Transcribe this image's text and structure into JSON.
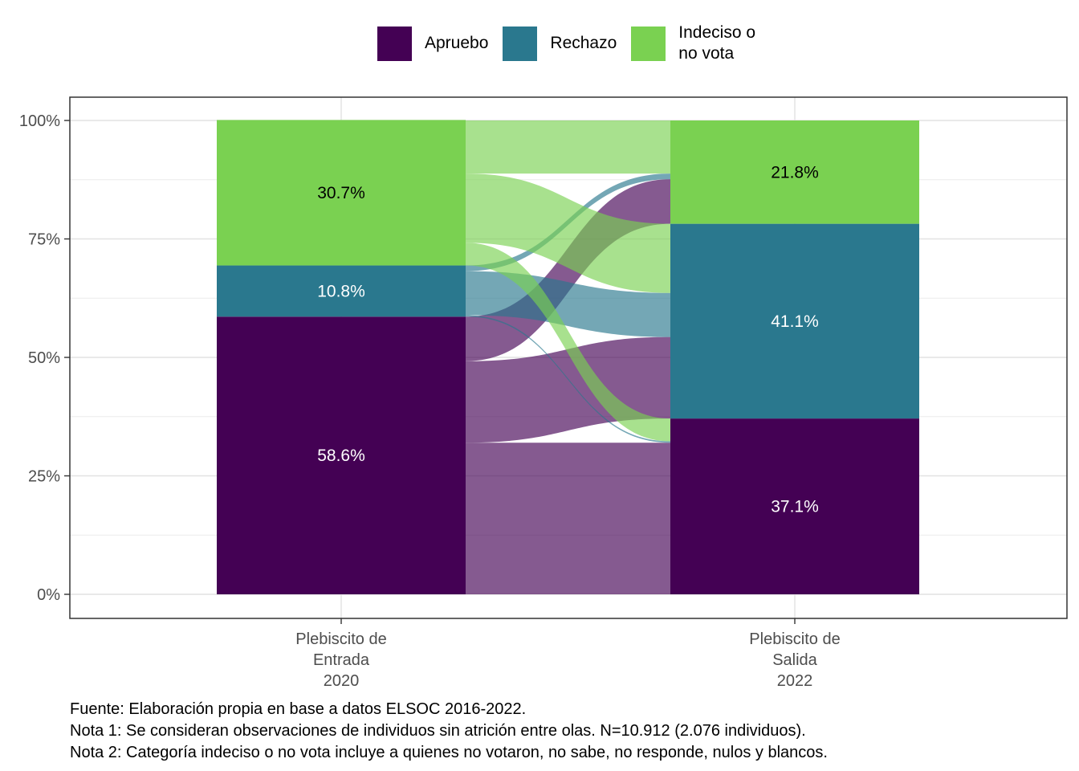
{
  "chart_data": {
    "type": "alluvial",
    "legend": {
      "placement": "top",
      "entries": [
        {
          "name": "Apruebo",
          "color": "#440154",
          "label_lines": [
            "Apruebo"
          ]
        },
        {
          "name": "Rechazo",
          "color": "#2A788E",
          "label_lines": [
            "Rechazo"
          ]
        },
        {
          "name": "Indeciso o no vota",
          "color": "#7AD151",
          "label_lines": [
            "Indeciso o",
            "no vota"
          ]
        }
      ]
    },
    "y_axis": {
      "range": [
        0,
        100
      ],
      "ticks": [
        0,
        25,
        50,
        75,
        100
      ],
      "tick_labels": [
        "0%",
        "25%",
        "50%",
        "75%",
        "100%"
      ]
    },
    "grid": true,
    "columns": [
      {
        "label_lines": [
          "Plebiscito de",
          "Entrada",
          "2020"
        ],
        "segments": [
          {
            "category": "Apruebo",
            "value": 58.6,
            "label": "58.6%"
          },
          {
            "category": "Rechazo",
            "value": 10.8,
            "label": "10.8%"
          },
          {
            "category": "Indeciso o no vota",
            "value": 30.7,
            "label": "30.7%"
          }
        ]
      },
      {
        "label_lines": [
          "Plebiscito de",
          "Salida",
          "2022"
        ],
        "segments": [
          {
            "category": "Apruebo",
            "value": 37.1,
            "label": "37.1%"
          },
          {
            "category": "Rechazo",
            "value": 41.1,
            "label": "41.1%"
          },
          {
            "category": "Indeciso o no vota",
            "value": 21.8,
            "label": "21.8%"
          }
        ]
      }
    ],
    "flows": [
      {
        "from": "Apruebo",
        "to": "Apruebo",
        "value": 32.0
      },
      {
        "from": "Apruebo",
        "to": "Rechazo",
        "value": 17.2
      },
      {
        "from": "Apruebo",
        "to": "Indeciso o no vota",
        "value": 9.4
      },
      {
        "from": "Rechazo",
        "to": "Apruebo",
        "value": 0.3
      },
      {
        "from": "Rechazo",
        "to": "Rechazo",
        "value": 9.3
      },
      {
        "from": "Rechazo",
        "to": "Indeciso o no vota",
        "value": 1.2
      },
      {
        "from": "Indeciso o no vota",
        "to": "Apruebo",
        "value": 4.8
      },
      {
        "from": "Indeciso o no vota",
        "to": "Rechazo",
        "value": 14.6
      },
      {
        "from": "Indeciso o no vota",
        "to": "Indeciso o no vota",
        "value": 11.2
      }
    ]
  },
  "notes": [
    "Fuente: Elaboración propia en base a datos ELSOC 2016-2022.",
    "Nota 1: Se consideran observaciones de individuos sin atrición entre olas. N=10.912 (2.076 individuos).",
    "Nota 2: Categoría indeciso o no vota incluye a quienes no votaron, no sabe, no responde, nulos y blancos."
  ]
}
